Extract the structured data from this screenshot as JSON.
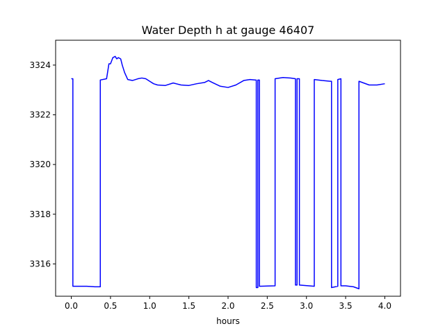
{
  "chart_data": {
    "type": "line",
    "title": "Water Depth h at gauge 46407",
    "xlabel": "hours",
    "ylabel": "",
    "xlim": [
      -0.2,
      4.2
    ],
    "ylim": [
      3314.7,
      3325.0
    ],
    "xticks": [
      0.0,
      0.5,
      1.0,
      1.5,
      2.0,
      2.5,
      3.0,
      3.5,
      4.0
    ],
    "xtick_labels": [
      "0.0",
      "0.5",
      "1.0",
      "1.5",
      "2.0",
      "2.5",
      "3.0",
      "3.5",
      "4.0"
    ],
    "yticks": [
      3316,
      3318,
      3320,
      3322,
      3324
    ],
    "ytick_labels": [
      "3316",
      "3318",
      "3320",
      "3322",
      "3324"
    ],
    "grid": false,
    "colors": {
      "series": "#0000ff",
      "axes": "#000000",
      "background": "#ffffff"
    },
    "series": [
      {
        "name": "",
        "x": [
          0.0,
          0.02,
          0.02,
          0.1,
          0.2,
          0.3,
          0.37,
          0.37,
          0.45,
          0.48,
          0.5,
          0.53,
          0.56,
          0.58,
          0.6,
          0.63,
          0.65,
          0.68,
          0.72,
          0.78,
          0.85,
          0.9,
          0.95,
          1.0,
          1.05,
          1.1,
          1.2,
          1.3,
          1.4,
          1.5,
          1.6,
          1.7,
          1.75,
          1.8,
          1.9,
          2.0,
          2.1,
          2.2,
          2.28,
          2.35,
          2.36,
          2.36,
          2.38,
          2.38,
          2.4,
          2.4,
          2.6,
          2.6,
          2.7,
          2.8,
          2.86,
          2.86,
          2.88,
          2.88,
          2.91,
          2.91,
          3.1,
          3.1,
          3.2,
          3.3,
          3.32,
          3.32,
          3.4,
          3.4,
          3.44,
          3.44,
          3.5,
          3.6,
          3.67,
          3.67,
          3.8,
          3.9,
          4.0
        ],
        "y": [
          3323.45,
          3323.45,
          3315.1,
          3315.1,
          3315.1,
          3315.08,
          3315.08,
          3323.4,
          3323.45,
          3324.05,
          3324.05,
          3324.3,
          3324.35,
          3324.25,
          3324.3,
          3324.25,
          3324.0,
          3323.7,
          3323.42,
          3323.38,
          3323.45,
          3323.48,
          3323.45,
          3323.35,
          3323.25,
          3323.2,
          3323.18,
          3323.28,
          3323.2,
          3323.18,
          3323.25,
          3323.3,
          3323.38,
          3323.3,
          3323.15,
          3323.1,
          3323.2,
          3323.38,
          3323.42,
          3323.4,
          3323.4,
          3315.05,
          3315.05,
          3323.4,
          3323.4,
          3315.1,
          3315.12,
          3323.45,
          3323.5,
          3323.48,
          3323.45,
          3315.15,
          3315.15,
          3323.45,
          3323.45,
          3315.15,
          3315.1,
          3323.42,
          3323.38,
          3323.35,
          3323.35,
          3315.05,
          3315.1,
          3323.42,
          3323.45,
          3315.12,
          3315.12,
          3315.08,
          3315.0,
          3323.35,
          3323.2,
          3323.2,
          3323.25
        ]
      }
    ]
  }
}
